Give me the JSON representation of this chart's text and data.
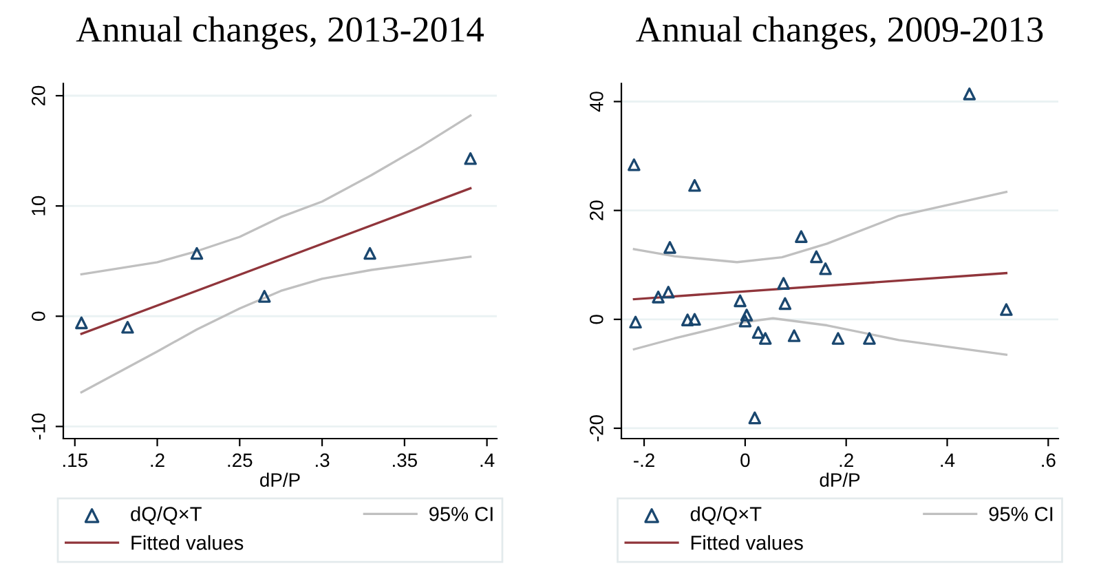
{
  "chart_data": [
    {
      "type": "scatter",
      "title": "Annual changes, 2013-2014",
      "xlabel": "dP/P",
      "xlim": [
        0.143,
        0.406
      ],
      "ylim": [
        -11.1,
        21.1
      ],
      "xticks": [
        {
          "value": 0.15,
          "label": ".15"
        },
        {
          "value": 0.2,
          "label": ".2"
        },
        {
          "value": 0.25,
          "label": ".25"
        },
        {
          "value": 0.3,
          "label": ".3"
        },
        {
          "value": 0.35,
          "label": ".35"
        },
        {
          "value": 0.4,
          "label": ".4"
        }
      ],
      "yticks": [
        -10,
        0,
        10,
        20
      ],
      "grid": "y",
      "legend": "bottom",
      "series": [
        {
          "name": "dQ/Q×T",
          "marker": "triangle",
          "color": "#1a476f",
          "x": [
            0.154,
            0.182,
            0.224,
            0.265,
            0.329,
            0.39
          ],
          "values": [
            -0.6,
            -1.0,
            5.7,
            1.8,
            5.7,
            14.3
          ]
        },
        {
          "name": "Fitted values",
          "type": "line",
          "color": "#90353b",
          "x": [
            0.154,
            0.39
          ],
          "values": [
            -1.6,
            11.6
          ]
        },
        {
          "name": "95% CI",
          "type": "line",
          "color": "#c0c0c0",
          "x": [
            0.154,
            0.2,
            0.224,
            0.25,
            0.275,
            0.3,
            0.33,
            0.36,
            0.39
          ],
          "values": [
            3.8,
            4.9,
            5.9,
            7.2,
            9.0,
            10.4,
            12.8,
            15.4,
            18.2
          ]
        },
        {
          "type": "line",
          "color": "#c0c0c0",
          "x": [
            0.154,
            0.2,
            0.224,
            0.25,
            0.275,
            0.3,
            0.33,
            0.36,
            0.39
          ],
          "values": [
            -6.9,
            -3.2,
            -1.2,
            0.7,
            2.3,
            3.4,
            4.2,
            4.8,
            5.4
          ]
        }
      ]
    },
    {
      "type": "scatter",
      "title": "Annual changes, 2009-2013",
      "xlabel": "dP/P",
      "xlim": [
        -0.245,
        0.62
      ],
      "ylim": [
        -21.9,
        43.3
      ],
      "xticks": [
        {
          "value": -0.2,
          "label": "-.2"
        },
        0,
        {
          "value": 0.2,
          "label": ".2"
        },
        {
          "value": 0.4,
          "label": ".4"
        },
        {
          "value": 0.6,
          "label": ".6"
        }
      ],
      "yticks": [
        -20,
        0,
        20,
        40
      ],
      "grid": "y",
      "legend": "bottom",
      "series": [
        {
          "name": "dQ/Q×T",
          "marker": "triangle",
          "color": "#1a476f",
          "x": [
            -0.22,
            -0.217,
            -0.172,
            -0.152,
            -0.149,
            -0.114,
            -0.1,
            -0.1,
            -0.01,
            0.0,
            0.003,
            0.026,
            0.04,
            0.019,
            0.076,
            0.079,
            0.097,
            0.111,
            0.141,
            0.159,
            0.184,
            0.246,
            0.444,
            0.517
          ],
          "values": [
            28.4,
            -0.5,
            4.1,
            5.0,
            13.2,
            -0.1,
            0.0,
            24.6,
            3.4,
            -0.3,
            0.8,
            -2.4,
            -3.5,
            -18.1,
            6.6,
            2.9,
            -3.0,
            15.2,
            11.5,
            9.3,
            -3.5,
            -3.5,
            41.4,
            1.8
          ]
        },
        {
          "name": "Fitted values",
          "type": "line",
          "color": "#90353b",
          "x": [
            -0.22,
            0.517
          ],
          "values": [
            3.7,
            8.5
          ]
        },
        {
          "name": "95% CI",
          "type": "line",
          "color": "#c0c0c0",
          "x": [
            -0.22,
            -0.14,
            -0.016,
            0.073,
            0.162,
            0.304,
            0.517
          ],
          "values": [
            12.9,
            11.6,
            10.5,
            11.4,
            13.9,
            19.0,
            23.4
          ]
        },
        {
          "type": "line",
          "color": "#c0c0c0",
          "x": [
            -0.22,
            -0.14,
            -0.016,
            0.055,
            0.162,
            0.304,
            0.517
          ],
          "values": [
            -5.5,
            -3.5,
            -0.7,
            0.2,
            -1.1,
            -3.8,
            -6.5
          ]
        }
      ]
    }
  ]
}
